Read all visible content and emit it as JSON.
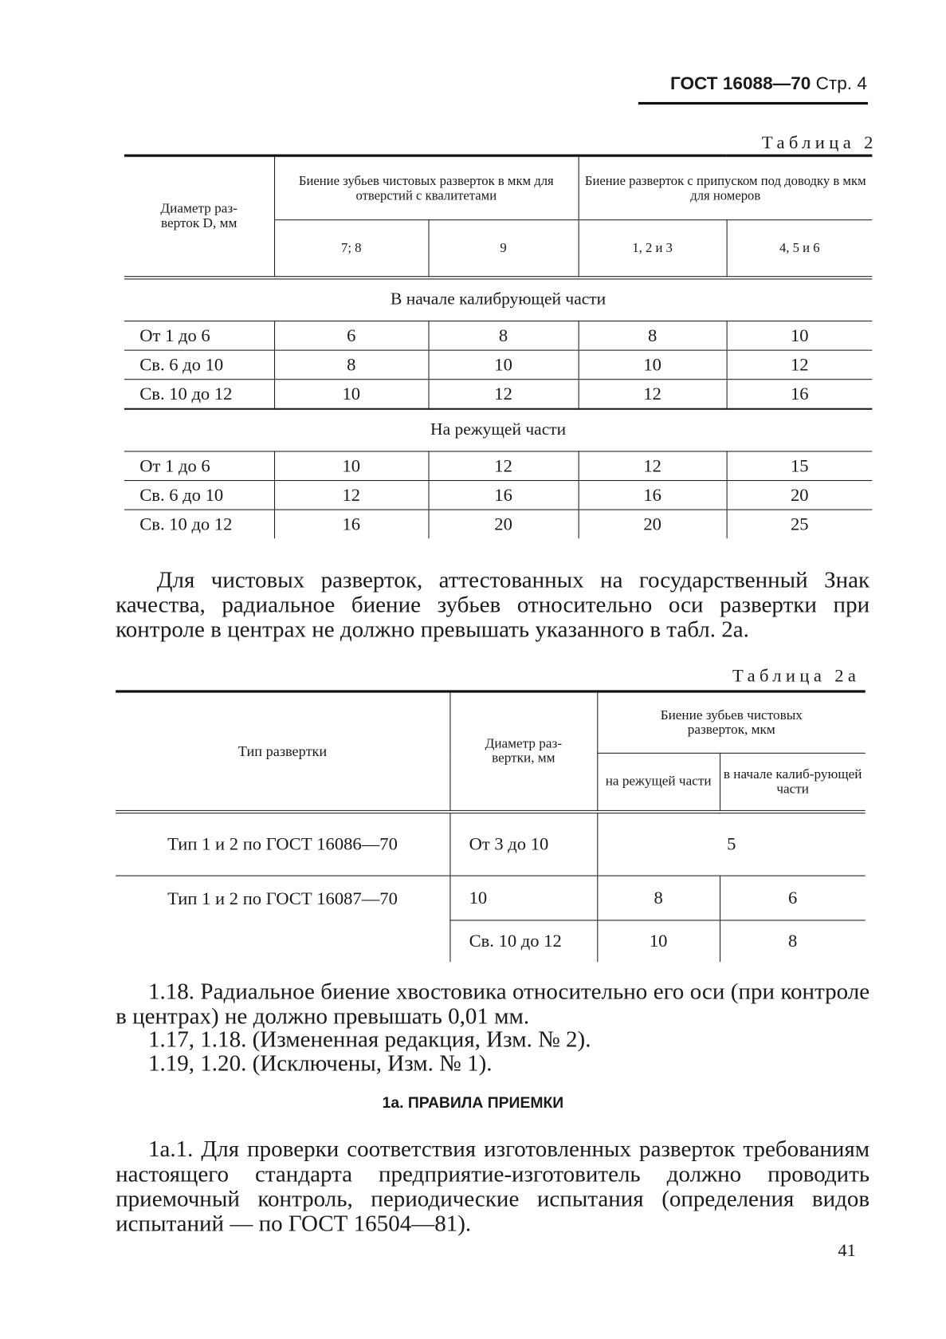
{
  "header": {
    "standard": "ГОСТ 16088—70",
    "page": "Стр. 4"
  },
  "table2": {
    "caption": "Таблица 2",
    "col0": "Диаметр раз-\nверток D, мм",
    "group1": "Биение зубьев чистовых разверток в мкм для отверстий с квалитетами",
    "group2": "Биение разверток с припуском под доводку в мкм для номеров",
    "sub": [
      "7; 8",
      "9",
      "1, 2 и 3",
      "4, 5 и 6"
    ],
    "sections": [
      {
        "title": "В начале калибрующей части",
        "rows": [
          {
            "d": "От 1 до 6",
            "v": [
              "6",
              "8",
              "8",
              "10"
            ]
          },
          {
            "d": "Св. 6 до 10",
            "v": [
              "8",
              "10",
              "10",
              "12"
            ]
          },
          {
            "d": "Св. 10 до 12",
            "v": [
              "10",
              "12",
              "12",
              "16"
            ]
          }
        ]
      },
      {
        "title": "На режущей части",
        "rows": [
          {
            "d": "От 1 до 6",
            "v": [
              "10",
              "12",
              "12",
              "15"
            ]
          },
          {
            "d": "Св. 6 до 10",
            "v": [
              "12",
              "16",
              "16",
              "20"
            ]
          },
          {
            "d": "Св. 10 до 12",
            "v": [
              "16",
              "20",
              "20",
              "25"
            ]
          }
        ]
      }
    ]
  },
  "para1": "Для чистовых разверток, аттестованных на государственный Знак качества, радиальное биение зубьев относительно оси развертки при контроле в центрах не должно превышать указанного в табл. 2а.",
  "table2a": {
    "caption": "Таблица 2а",
    "col0": "Тип развертки",
    "col1": "Диаметр раз-\nвертки, мм",
    "group": "Биение зубьев чистовых разверток, мкм",
    "sub": [
      "на режущей части",
      "в начале калиб-рующей части"
    ],
    "row1": {
      "type": "Тип 1 и 2 по ГОСТ 16086—70",
      "d": "От 3 до 10",
      "v": "5"
    },
    "row2": {
      "type": "Тип 1 и 2 по ГОСТ 16087—70",
      "d": "10",
      "v": [
        "8",
        "6"
      ]
    },
    "row3": {
      "d": "Св. 10 до 12",
      "v": [
        "10",
        "8"
      ]
    }
  },
  "p118": "1.18. Радиальное биение хвостовика относительно его оси (при контроле в центрах) не должно превышать 0,01 мм.",
  "p117": "1.17, 1.18. (Измененная редакция, Изм. № 2).",
  "p119": "1.19, 1.20. (Исключены, Изм. № 1).",
  "heading": "1а. ПРАВИЛА ПРИЕМКИ",
  "p1a1": "1а.1. Для проверки соответствия изготовленных разверток требованиям настоящего стандарта предприятие-изготовитель должно проводить приемочный контроль, периодические испытания (определения видов испытаний — по ГОСТ 16504—81).",
  "page_number": "41"
}
